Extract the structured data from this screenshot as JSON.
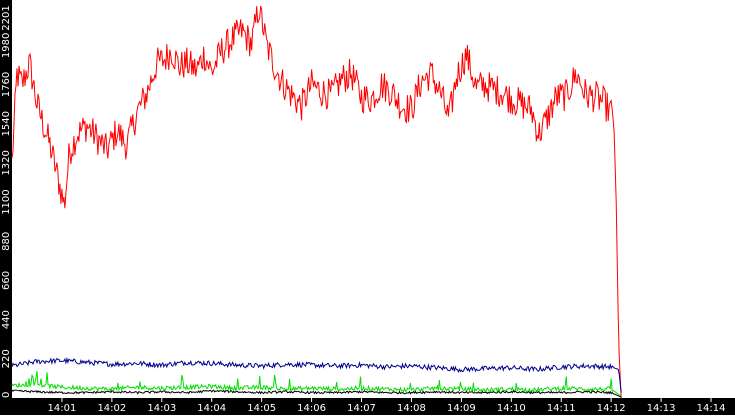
{
  "chart_data": {
    "type": "line",
    "title": "",
    "xlabel": "",
    "ylabel": "",
    "x_ticks": [
      "14:01",
      "14:02",
      "14:03",
      "14:04",
      "14:05",
      "14:06",
      "14:07",
      "14:08",
      "14:09",
      "14:10",
      "14:11",
      "14:12",
      "14:13",
      "14:14"
    ],
    "y_ticks": [
      0,
      220,
      440,
      660,
      880,
      1100,
      1320,
      1540,
      1760,
      1980,
      2201
    ],
    "ylim": [
      0,
      2201
    ],
    "xlim_minutes": [
      0.0,
      14.48
    ],
    "grid": false,
    "legend": "none",
    "axis_band_color": "#000000",
    "axis_text_color": "#ffffff",
    "series": [
      {
        "color": "#ff0000",
        "x_minutes": [
          0.0,
          0.1,
          0.2,
          0.35,
          0.5,
          0.6,
          0.75,
          0.9,
          1.05,
          1.15,
          1.3,
          1.5,
          1.7,
          1.9,
          2.1,
          2.3,
          2.5,
          2.7,
          2.9,
          3.05,
          3.2,
          3.35,
          3.5,
          3.7,
          3.85,
          4.0,
          4.2,
          4.4,
          4.6,
          4.8,
          4.95,
          5.1,
          5.25,
          5.4,
          5.6,
          5.8,
          6.0,
          6.2,
          6.4,
          6.6,
          6.8,
          7.0,
          7.2,
          7.4,
          7.6,
          7.8,
          8.0,
          8.2,
          8.4,
          8.6,
          8.75,
          8.9,
          9.1,
          9.3,
          9.45,
          9.6,
          9.8,
          10.0,
          10.2,
          10.4,
          10.55,
          10.7,
          10.9,
          11.1,
          11.3,
          11.5,
          11.7,
          11.85,
          11.95,
          12.05,
          12.1,
          12.15,
          12.2
        ],
        "values": [
          1320,
          1820,
          1760,
          1880,
          1650,
          1560,
          1430,
          1260,
          1080,
          1380,
          1480,
          1530,
          1460,
          1390,
          1500,
          1420,
          1600,
          1710,
          1880,
          1900,
          1950,
          1860,
          1880,
          1840,
          1930,
          1830,
          1950,
          2010,
          2060,
          1990,
          2201,
          1980,
          1870,
          1780,
          1700,
          1640,
          1760,
          1720,
          1700,
          1790,
          1820,
          1690,
          1680,
          1760,
          1720,
          1640,
          1620,
          1780,
          1820,
          1700,
          1560,
          1800,
          1930,
          1740,
          1760,
          1740,
          1720,
          1680,
          1650,
          1620,
          1480,
          1560,
          1690,
          1700,
          1820,
          1700,
          1690,
          1660,
          1620,
          1580,
          1100,
          300,
          0
        ]
      },
      {
        "color": "#00008b",
        "x_minutes": [
          0.0,
          0.5,
          1.0,
          1.5,
          2.0,
          2.5,
          3.0,
          3.5,
          4.0,
          4.5,
          5.0,
          5.5,
          6.0,
          6.5,
          7.0,
          7.5,
          8.0,
          8.5,
          9.0,
          9.5,
          10.0,
          10.5,
          11.0,
          11.5,
          12.0,
          12.15,
          12.2
        ],
        "values": [
          180,
          205,
          210,
          200,
          190,
          195,
          185,
          200,
          195,
          185,
          180,
          190,
          185,
          180,
          185,
          175,
          180,
          170,
          160,
          165,
          170,
          160,
          175,
          180,
          175,
          160,
          30
        ]
      },
      {
        "color": "#00dd00",
        "x_minutes": [
          0.0,
          0.5,
          1.0,
          1.5,
          2.0,
          2.5,
          3.0,
          3.5,
          4.0,
          4.5,
          5.0,
          5.5,
          6.0,
          6.5,
          7.0,
          7.5,
          8.0,
          8.5,
          9.0,
          9.5,
          10.0,
          10.5,
          11.0,
          11.5,
          12.0,
          12.2
        ],
        "values": [
          70,
          75,
          60,
          55,
          50,
          60,
          55,
          60,
          65,
          55,
          60,
          50,
          55,
          50,
          55,
          50,
          45,
          55,
          50,
          45,
          50,
          45,
          55,
          50,
          50,
          10
        ]
      },
      {
        "color": "#000000",
        "x_minutes": [
          0.0,
          0.5,
          1.0,
          1.5,
          2.0,
          2.5,
          3.0,
          3.5,
          4.0,
          4.5,
          5.0,
          5.5,
          6.0,
          6.5,
          7.0,
          7.5,
          8.0,
          8.5,
          9.0,
          9.5,
          10.0,
          10.5,
          11.0,
          11.5,
          12.0,
          12.2
        ],
        "values": [
          40,
          35,
          30,
          30,
          35,
          30,
          35,
          30,
          40,
          35,
          30,
          35,
          30,
          30,
          35,
          30,
          30,
          35,
          30,
          30,
          35,
          30,
          30,
          35,
          30,
          5
        ]
      }
    ]
  }
}
